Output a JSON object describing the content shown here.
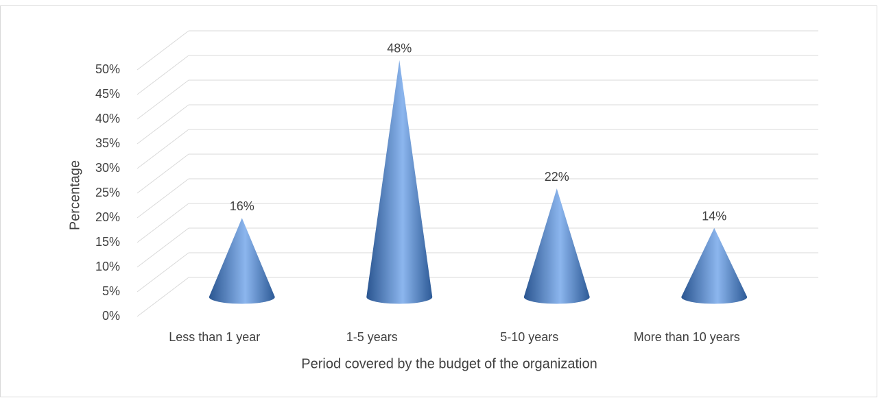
{
  "chart_data": {
    "type": "cone",
    "x_label": "Period covered by the budget of the organization",
    "y_label": "Percentage",
    "categories": [
      "Less than 1 year",
      "1-5 years",
      "5-10 years",
      "More than 10 years"
    ],
    "values": [
      16,
      48,
      22,
      14
    ],
    "value_labels": [
      "16%",
      "48%",
      "22%",
      "14%"
    ],
    "color": "#4f81bd",
    "ylim": [
      0,
      50
    ],
    "yticks": [
      {
        "value": 0,
        "label": "0%"
      },
      {
        "value": 5,
        "label": "5%"
      },
      {
        "value": 10,
        "label": "10%"
      },
      {
        "value": 15,
        "label": "15%"
      },
      {
        "value": 20,
        "label": "20%"
      },
      {
        "value": 25,
        "label": "25%"
      },
      {
        "value": 30,
        "label": "30%"
      },
      {
        "value": 35,
        "label": "35%"
      },
      {
        "value": 40,
        "label": "40%"
      },
      {
        "value": 45,
        "label": "45%"
      },
      {
        "value": 50,
        "label": "50%"
      }
    ],
    "grid": true
  }
}
